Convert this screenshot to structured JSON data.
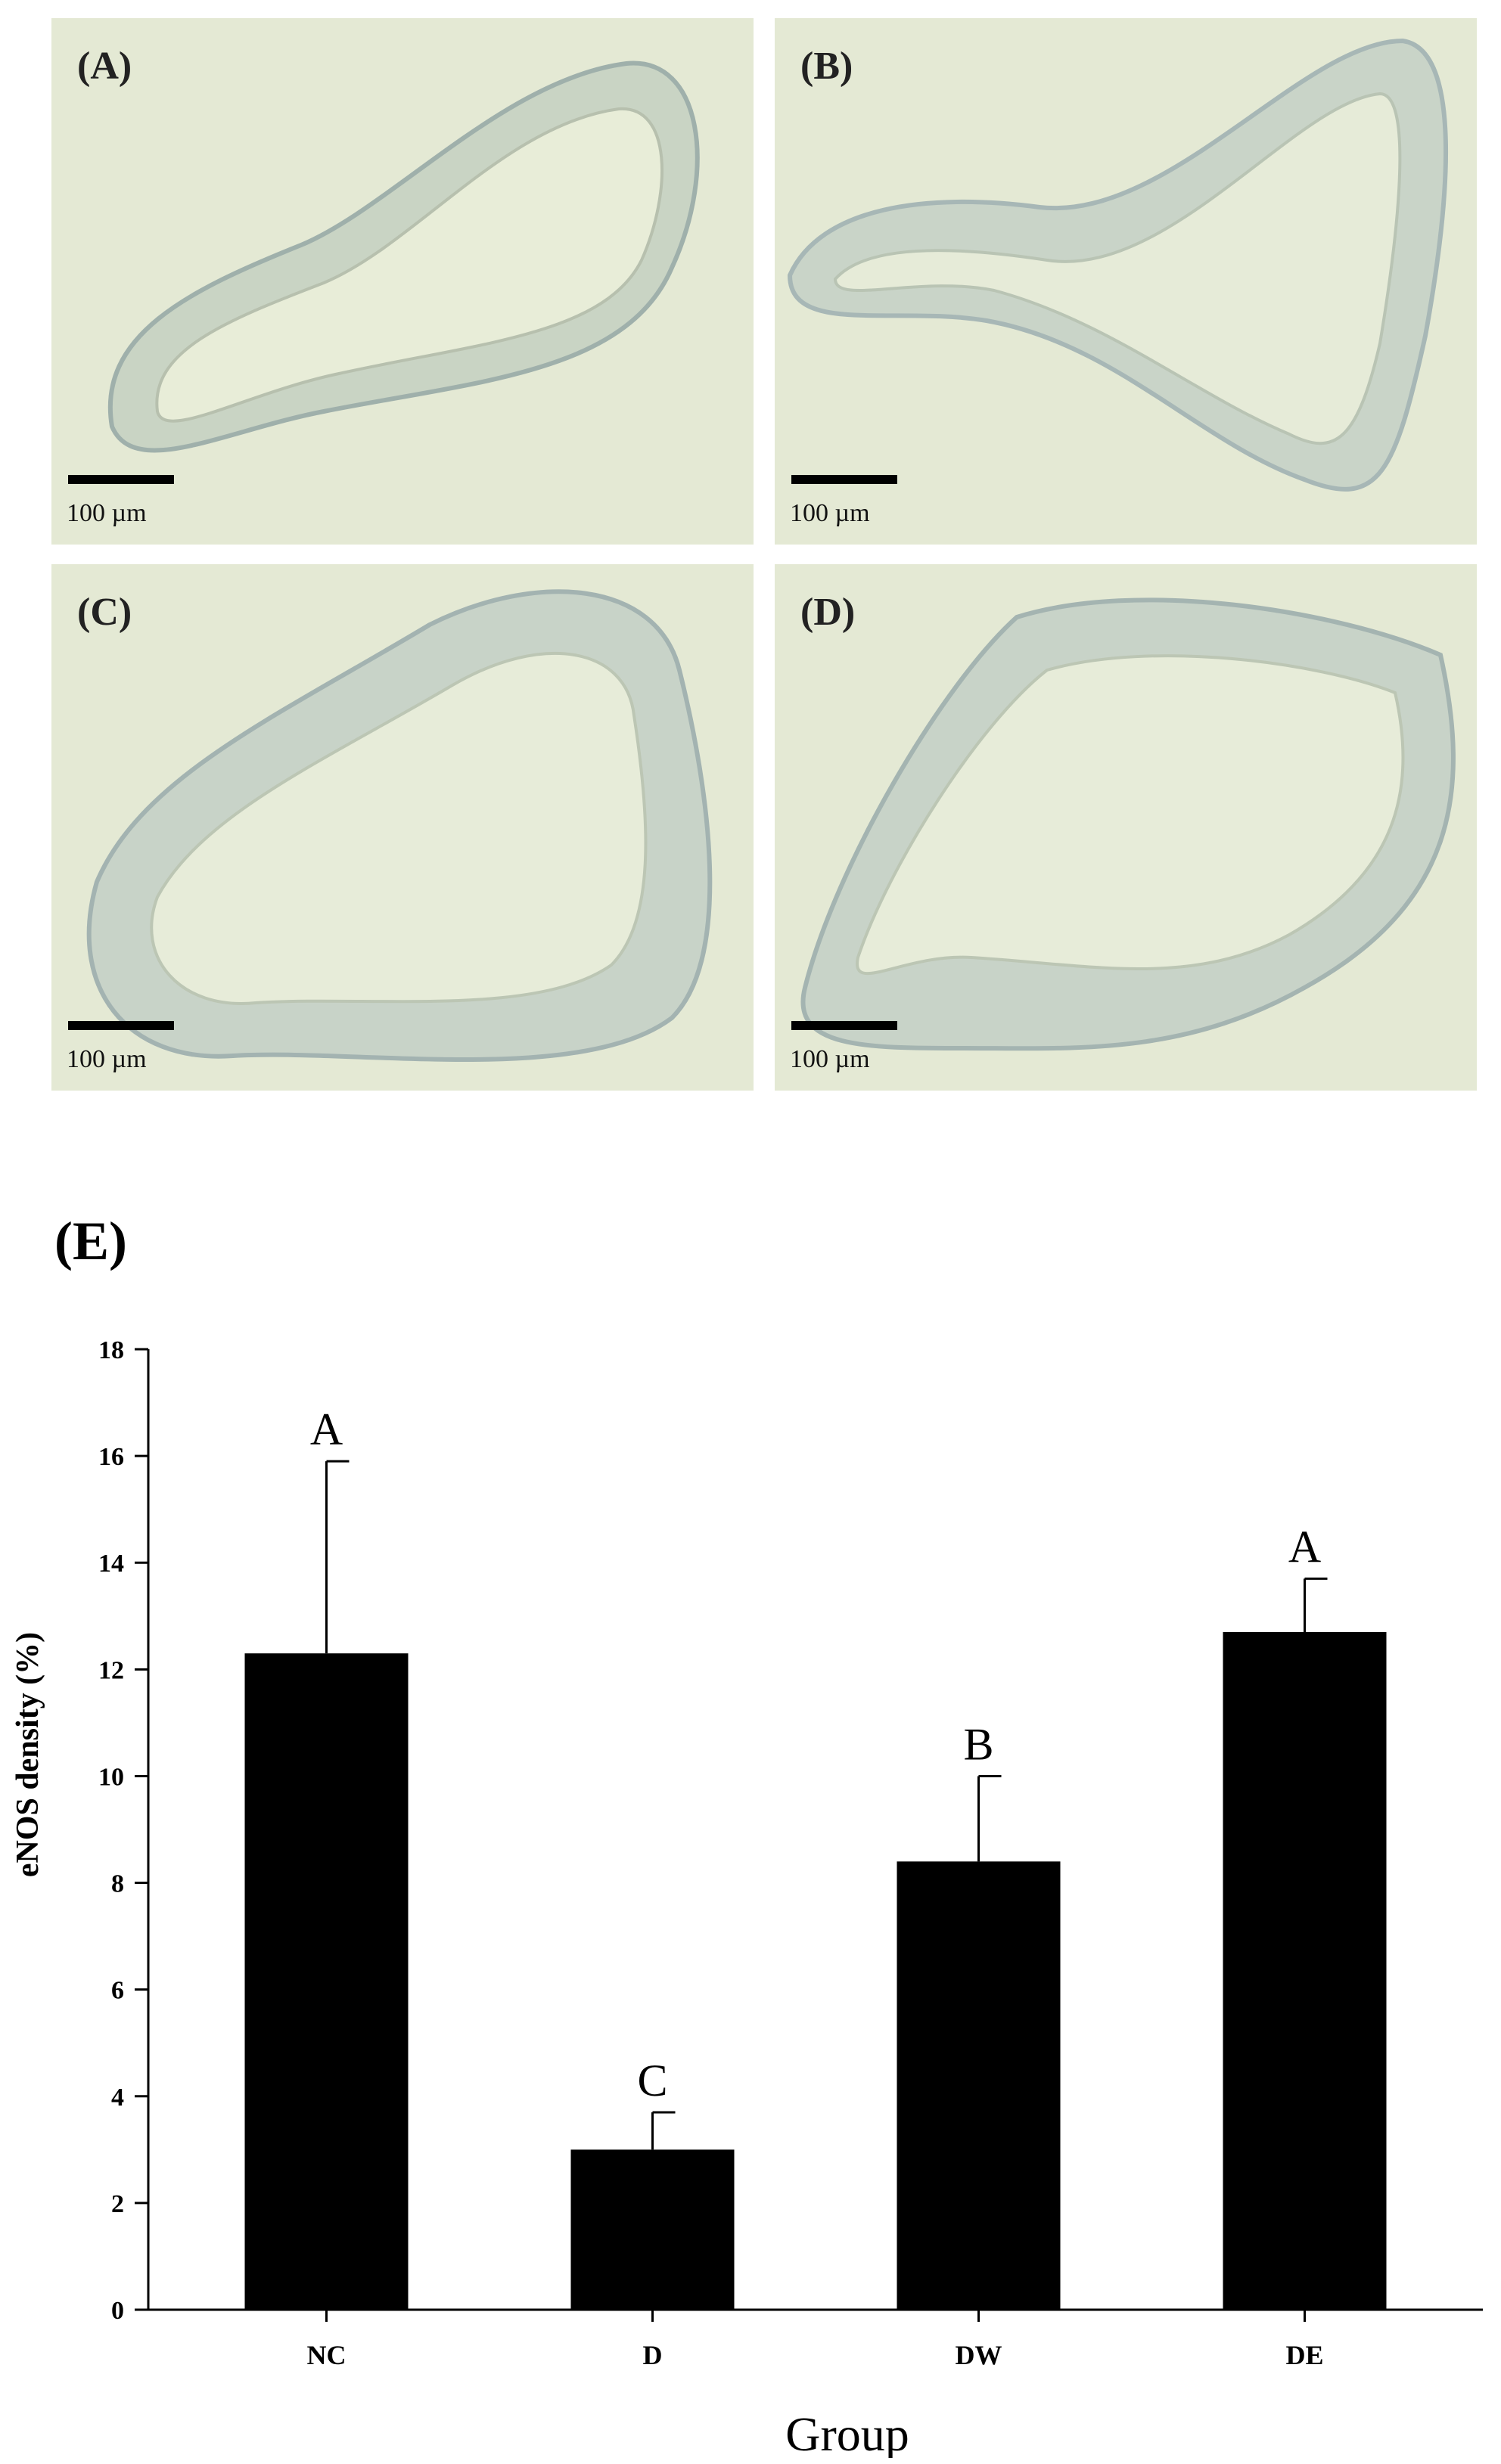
{
  "panels": [
    {
      "label": "(A)",
      "scale": "100 µm"
    },
    {
      "label": "(B)",
      "scale": "100 µm"
    },
    {
      "label": "(C)",
      "scale": "100 µm"
    },
    {
      "label": "(D)",
      "scale": "100 µm"
    }
  ],
  "panel_e_label": "(E)",
  "chart_data": {
    "type": "bar",
    "categories": [
      "NC",
      "D",
      "DW",
      "DE"
    ],
    "values": [
      12.3,
      3.0,
      8.4,
      12.7
    ],
    "errors": [
      3.6,
      0.7,
      1.6,
      1.0
    ],
    "significance": [
      "A",
      "C",
      "B",
      "A"
    ],
    "xlabel": "Group",
    "ylabel": "eNOS density (%)",
    "ylim": [
      0,
      18
    ],
    "yticks": [
      0,
      2,
      4,
      6,
      8,
      10,
      12,
      14,
      16,
      18
    ],
    "bar_color": "#000000",
    "grid": false
  }
}
